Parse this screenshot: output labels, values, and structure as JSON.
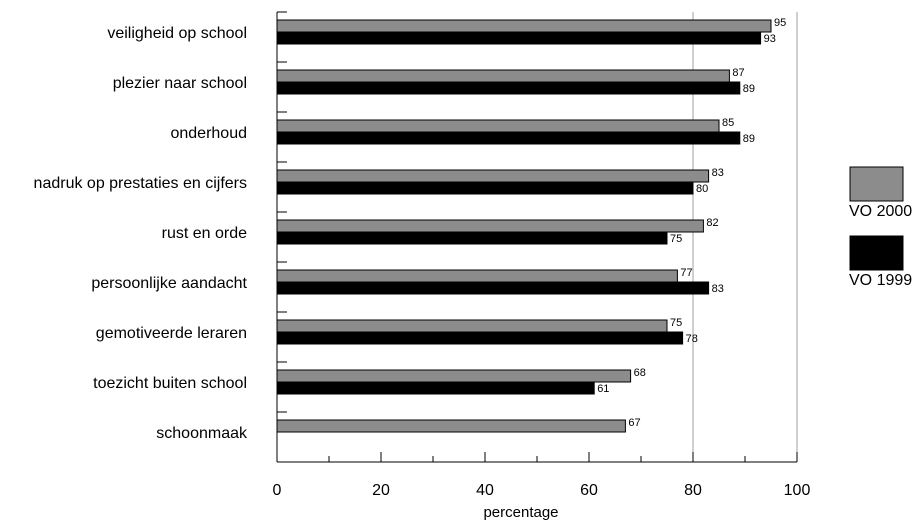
{
  "chart_data": {
    "type": "bar",
    "orientation": "horizontal",
    "categories": [
      "veiligheid op school",
      "plezier naar school",
      "onderhoud",
      "nadruk op prestaties en cijfers",
      "rust en orde",
      "persoonlijke aandacht",
      "gemotiveerde leraren",
      "toezicht buiten school",
      "schoonmaak"
    ],
    "series": [
      {
        "name": "VO 2000",
        "color": "#8c8c8c",
        "values": [
          95,
          87,
          85,
          83,
          82,
          77,
          75,
          68,
          67
        ]
      },
      {
        "name": "VO 1999",
        "color": "#000000",
        "values": [
          93,
          89,
          89,
          80,
          75,
          83,
          78,
          61,
          null
        ]
      }
    ],
    "title": "",
    "xlabel": "percentage",
    "ylabel": "",
    "xlim": [
      0,
      100
    ],
    "xticks": [
      0,
      20,
      40,
      60,
      80,
      100
    ],
    "grid": "vertical gridlines at 80 and 100",
    "legend": "right"
  }
}
